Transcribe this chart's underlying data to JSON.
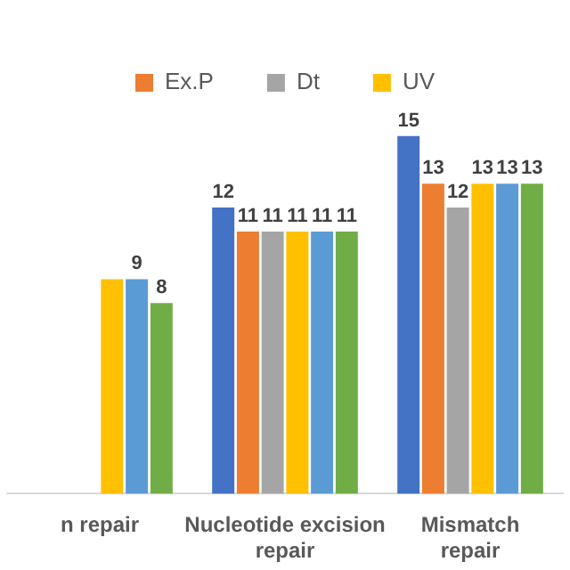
{
  "chart_data": {
    "type": "bar",
    "categories": [
      "n repair",
      "Nucleotide excision repair",
      "Mismatch repair"
    ],
    "series": [
      {
        "color": "#4472c4",
        "values": [
          null,
          12,
          15
        ],
        "value_labels": [
          null,
          "12",
          "15"
        ]
      },
      {
        "name": "Ex.P",
        "color": "#ed7d31",
        "values": [
          null,
          11,
          13
        ],
        "value_labels": [
          null,
          "11",
          "13"
        ]
      },
      {
        "name": "Dt",
        "color": "#a5a5a5",
        "values": [
          null,
          11,
          12
        ],
        "value_labels": [
          null,
          "11",
          "12"
        ]
      },
      {
        "name": "UV",
        "color": "#ffc000",
        "values": [
          9,
          11,
          13
        ],
        "value_labels": [
          null,
          "11",
          "13"
        ]
      },
      {
        "color": "#5b9bd5",
        "values": [
          9,
          11,
          13
        ],
        "value_labels": [
          "9",
          "11",
          "13"
        ]
      },
      {
        "color": "#70ad47",
        "values": [
          8,
          11,
          13
        ],
        "value_labels": [
          "8",
          "11",
          "13"
        ]
      }
    ],
    "legend": "top",
    "grid": false,
    "tick_labels": "x"
  }
}
